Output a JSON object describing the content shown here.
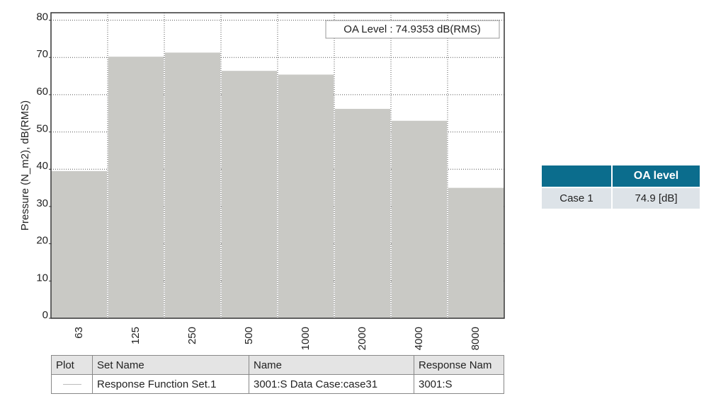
{
  "chart_data": {
    "type": "bar",
    "y_label": "Pressure (N_m2), dB(RMS)",
    "annotation": "OA Level : 74.9353 dB(RMS)",
    "categories": [
      "63",
      "125",
      "250",
      "500",
      "1000",
      "2000",
      "4000",
      "8000"
    ],
    "values": [
      39.5,
      70.2,
      71.3,
      66.4,
      65.4,
      56.2,
      53,
      35
    ],
    "color": "#c9c9c5",
    "ylim": [
      0,
      82
    ],
    "yticks": [
      0,
      10,
      20,
      30,
      40,
      50,
      60,
      70,
      80
    ],
    "grid": true
  },
  "legend_table": {
    "header": [
      "Plot",
      "Set Name",
      "Name",
      "Response Nam"
    ],
    "rows": [
      [
        "Response Function Set.1",
        "3001:S  Data Case:case31",
        "3001:S"
      ]
    ]
  },
  "summary_table": {
    "header": "OA level",
    "rows": [
      [
        "Case 1",
        "74.9 [dB]"
      ]
    ]
  }
}
